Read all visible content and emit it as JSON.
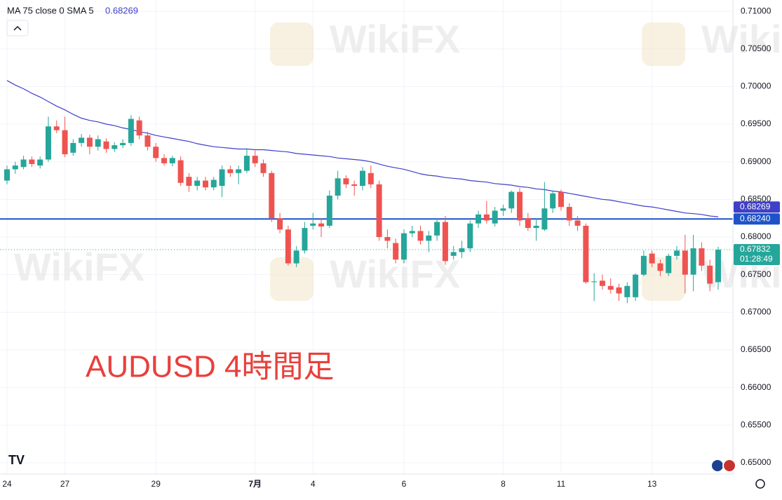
{
  "chart_data": {
    "type": "candlestick",
    "indicator_label": "MA 75 close 0 SMA 5",
    "indicator_value": 0.68269,
    "annotation": "AUDUSD 4時間足",
    "watermark": "WikiFX",
    "up_color": "#26a69a",
    "down_color": "#ef5350",
    "ylim": [
      0.6485,
      0.7115
    ],
    "yticks": [
      {
        "value": 0.65,
        "label": "0.65000"
      },
      {
        "value": 0.655,
        "label": "0.65500"
      },
      {
        "value": 0.66,
        "label": "0.66000"
      },
      {
        "value": 0.665,
        "label": "0.66500"
      },
      {
        "value": 0.67,
        "label": "0.67000"
      },
      {
        "value": 0.675,
        "label": "0.67500"
      },
      {
        "value": 0.68,
        "label": "0.68000"
      },
      {
        "value": 0.685,
        "label": "0.68500"
      },
      {
        "value": 0.69,
        "label": "0.69000"
      },
      {
        "value": 0.695,
        "label": "0.69500"
      },
      {
        "value": 0.7,
        "label": "0.70000"
      },
      {
        "value": 0.705,
        "label": "0.70500"
      },
      {
        "value": 0.71,
        "label": "0.71000"
      }
    ],
    "grid": true,
    "categories": [
      "24",
      null,
      null,
      null,
      null,
      null,
      null,
      "27",
      null,
      null,
      null,
      null,
      null,
      null,
      null,
      null,
      null,
      null,
      "29",
      null,
      null,
      null,
      null,
      null,
      null,
      null,
      null,
      null,
      null,
      null,
      "7月",
      null,
      null,
      null,
      null,
      null,
      null,
      "4",
      null,
      null,
      null,
      null,
      null,
      null,
      null,
      null,
      null,
      null,
      "6",
      null,
      null,
      null,
      null,
      null,
      null,
      null,
      null,
      null,
      null,
      null,
      "8",
      null,
      null,
      null,
      null,
      null,
      null,
      "11",
      null,
      null,
      null,
      null,
      null,
      null,
      null,
      null,
      null,
      null,
      "13",
      null,
      null,
      null,
      null,
      null,
      null,
      null,
      null
    ],
    "candles": [
      [
        0.6875,
        0.6895,
        0.687,
        0.689
      ],
      [
        0.689,
        0.69,
        0.6884,
        0.6895
      ],
      [
        0.6893,
        0.6908,
        0.689,
        0.6903
      ],
      [
        0.6903,
        0.6907,
        0.6893,
        0.6897
      ],
      [
        0.6895,
        0.6907,
        0.6891,
        0.6903
      ],
      [
        0.6903,
        0.696,
        0.69,
        0.6947
      ],
      [
        0.6947,
        0.6955,
        0.6938,
        0.6942
      ],
      [
        0.6942,
        0.696,
        0.6906,
        0.691
      ],
      [
        0.6912,
        0.693,
        0.6908,
        0.6925
      ],
      [
        0.6925,
        0.6937,
        0.692,
        0.6932
      ],
      [
        0.6932,
        0.6936,
        0.691,
        0.692
      ],
      [
        0.692,
        0.6935,
        0.6915,
        0.693
      ],
      [
        0.6927,
        0.6931,
        0.6912,
        0.6917
      ],
      [
        0.6917,
        0.6926,
        0.6913,
        0.6922
      ],
      [
        0.6922,
        0.693,
        0.6918,
        0.6925
      ],
      [
        0.6925,
        0.6962,
        0.6921,
        0.6957
      ],
      [
        0.6955,
        0.696,
        0.693,
        0.6935
      ],
      [
        0.6935,
        0.694,
        0.6915,
        0.692
      ],
      [
        0.692,
        0.6925,
        0.69,
        0.6905
      ],
      [
        0.6905,
        0.691,
        0.6895,
        0.6898
      ],
      [
        0.6898,
        0.6908,
        0.6894,
        0.6905
      ],
      [
        0.6902,
        0.6907,
        0.6868,
        0.6872
      ],
      [
        0.688,
        0.6885,
        0.686,
        0.6868
      ],
      [
        0.6868,
        0.688,
        0.6862,
        0.6875
      ],
      [
        0.6875,
        0.688,
        0.6862,
        0.6866
      ],
      [
        0.6866,
        0.688,
        0.6862,
        0.6876
      ],
      [
        0.6868,
        0.6895,
        0.6853,
        0.689
      ],
      [
        0.689,
        0.6895,
        0.688,
        0.6885
      ],
      [
        0.6885,
        0.6895,
        0.687,
        0.689
      ],
      [
        0.6888,
        0.6918,
        0.6885,
        0.6908
      ],
      [
        0.6908,
        0.6915,
        0.6893,
        0.6898
      ],
      [
        0.6898,
        0.6903,
        0.688,
        0.6885
      ],
      [
        0.6885,
        0.6888,
        0.682,
        0.6825
      ],
      [
        0.6825,
        0.6832,
        0.6805,
        0.681
      ],
      [
        0.681,
        0.6815,
        0.6762,
        0.6765
      ],
      [
        0.6765,
        0.6788,
        0.676,
        0.6782
      ],
      [
        0.6782,
        0.682,
        0.6778,
        0.6812
      ],
      [
        0.6815,
        0.6832,
        0.681,
        0.6818
      ],
      [
        0.6818,
        0.6825,
        0.68,
        0.6814
      ],
      [
        0.6815,
        0.6862,
        0.6812,
        0.6855
      ],
      [
        0.6855,
        0.6888,
        0.685,
        0.6878
      ],
      [
        0.6878,
        0.6882,
        0.6865,
        0.687
      ],
      [
        0.687,
        0.6875,
        0.6855,
        0.6868
      ],
      [
        0.6868,
        0.6893,
        0.6862,
        0.6888
      ],
      [
        0.6885,
        0.6895,
        0.6865,
        0.687
      ],
      [
        0.687,
        0.6875,
        0.6795,
        0.68
      ],
      [
        0.68,
        0.681,
        0.6785,
        0.6795
      ],
      [
        0.6792,
        0.6798,
        0.6765,
        0.677
      ],
      [
        0.677,
        0.681,
        0.6765,
        0.6805
      ],
      [
        0.6805,
        0.6815,
        0.68,
        0.6808
      ],
      [
        0.6808,
        0.6815,
        0.679,
        0.6795
      ],
      [
        0.6795,
        0.6808,
        0.678,
        0.6802
      ],
      [
        0.6802,
        0.6825,
        0.6795,
        0.682
      ],
      [
        0.682,
        0.6828,
        0.6763,
        0.6768
      ],
      [
        0.6775,
        0.6788,
        0.677,
        0.678
      ],
      [
        0.678,
        0.6795,
        0.6772,
        0.6785
      ],
      [
        0.6785,
        0.6822,
        0.678,
        0.6818
      ],
      [
        0.6818,
        0.6835,
        0.6812,
        0.683
      ],
      [
        0.683,
        0.6848,
        0.6818,
        0.6822
      ],
      [
        0.6818,
        0.684,
        0.6814,
        0.6835
      ],
      [
        0.6835,
        0.6843,
        0.6828,
        0.6838
      ],
      [
        0.6838,
        0.6862,
        0.6832,
        0.686
      ],
      [
        0.686,
        0.6865,
        0.6815,
        0.6822
      ],
      [
        0.6825,
        0.6832,
        0.6808,
        0.6812
      ],
      [
        0.6812,
        0.6825,
        0.6795,
        0.6815
      ],
      [
        0.681,
        0.6873,
        0.6808,
        0.6838
      ],
      [
        0.6838,
        0.6862,
        0.6832,
        0.6858
      ],
      [
        0.686,
        0.6863,
        0.6835,
        0.684
      ],
      [
        0.684,
        0.6845,
        0.6815,
        0.6822
      ],
      [
        0.6822,
        0.6828,
        0.6808,
        0.6815
      ],
      [
        0.6815,
        0.6818,
        0.6738,
        0.674
      ],
      [
        0.674,
        0.6752,
        0.6715,
        0.6741
      ],
      [
        0.6742,
        0.675,
        0.673,
        0.6735
      ],
      [
        0.6735,
        0.6745,
        0.6725,
        0.673
      ],
      [
        0.6733,
        0.6738,
        0.6715,
        0.6725
      ],
      [
        0.672,
        0.674,
        0.6712,
        0.6735
      ],
      [
        0.672,
        0.6752,
        0.6715,
        0.675
      ],
      [
        0.675,
        0.6782,
        0.6748,
        0.6775
      ],
      [
        0.6778,
        0.6782,
        0.676,
        0.6765
      ],
      [
        0.6765,
        0.677,
        0.6748,
        0.6755
      ],
      [
        0.6752,
        0.6778,
        0.6748,
        0.6775
      ],
      [
        0.6775,
        0.6788,
        0.677,
        0.6782
      ],
      [
        0.6782,
        0.6803,
        0.6725,
        0.675
      ],
      [
        0.675,
        0.6803,
        0.6728,
        0.6785
      ],
      [
        0.6785,
        0.6793,
        0.6755,
        0.6762
      ],
      [
        0.6762,
        0.677,
        0.6728,
        0.6738
      ],
      [
        0.674,
        0.6787,
        0.673,
        0.67832
      ]
    ],
    "ma": {
      "color": "#3f3fc8",
      "values": [
        0.7008,
        0.7002,
        0.6997,
        0.6991,
        0.6986,
        0.698,
        0.6974,
        0.6969,
        0.6963,
        0.6958,
        0.6955,
        0.6953,
        0.695,
        0.6948,
        0.6945,
        0.6943,
        0.694,
        0.6938,
        0.6935,
        0.6933,
        0.6931,
        0.6929,
        0.6927,
        0.6924,
        0.6922,
        0.692,
        0.6919,
        0.6918,
        0.6917,
        0.6917,
        0.6916,
        0.6916,
        0.6915,
        0.6914,
        0.6913,
        0.6911,
        0.691,
        0.6909,
        0.6908,
        0.6907,
        0.6905,
        0.6904,
        0.6903,
        0.6902,
        0.69,
        0.6897,
        0.6894,
        0.6892,
        0.689,
        0.6887,
        0.6884,
        0.6882,
        0.6881,
        0.6879,
        0.6878,
        0.6877,
        0.6875,
        0.6874,
        0.6873,
        0.6871,
        0.687,
        0.6869,
        0.6867,
        0.6866,
        0.6864,
        0.6863,
        0.6861,
        0.686,
        0.6858,
        0.6856,
        0.6854,
        0.6852,
        0.685,
        0.6849,
        0.6847,
        0.6845,
        0.6843,
        0.6841,
        0.684,
        0.6838,
        0.6836,
        0.6834,
        0.6832,
        0.6831,
        0.683,
        0.6828,
        0.68269
      ]
    },
    "hline": {
      "value": 0.6824,
      "label": "0.68240",
      "color": "#1e53c8"
    },
    "last_price": {
      "value": 0.67832,
      "countdown": "01:28:49"
    }
  }
}
